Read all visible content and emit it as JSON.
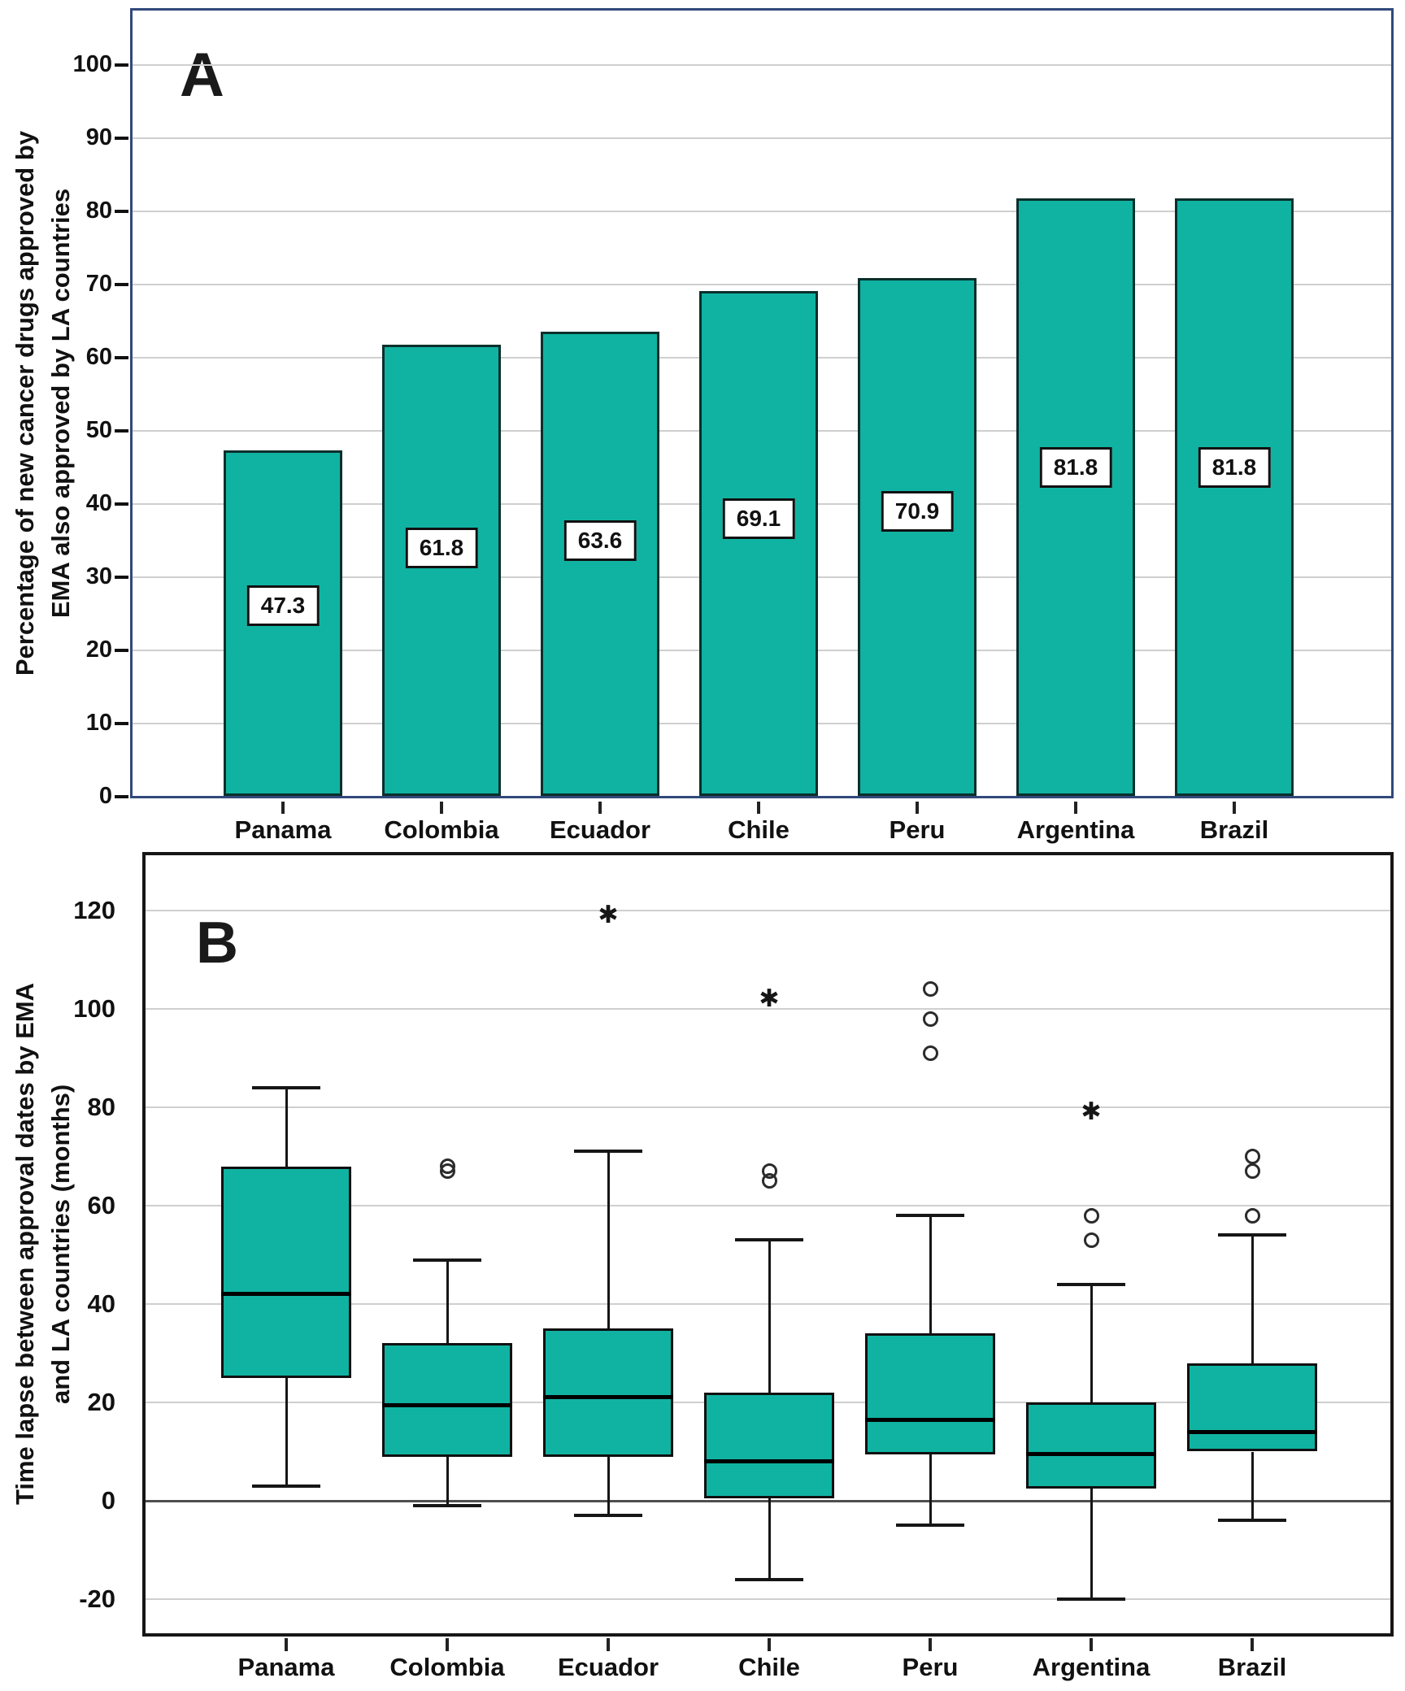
{
  "figure": {
    "panel_a_letter": "A",
    "panel_b_letter": "B"
  },
  "colors": {
    "box_fill": "#10b3a2",
    "bar_border": "#0b2f2b",
    "panel_a_border": "#31497b",
    "panel_b_border": "#161616",
    "gridline": "#cfcfcf",
    "zero_line": "#4f4f4f"
  },
  "chart_data": [
    {
      "id": "panel-a",
      "type": "bar",
      "panel_label": "A",
      "ylabel_lines": [
        "Percentage of new cancer drugs approved by",
        "EMA also approved by LA countries"
      ],
      "categories": [
        "Panama",
        "Colombia",
        "Ecuador",
        "Chile",
        "Peru",
        "Argentina",
        "Brazil"
      ],
      "values": [
        47.3,
        61.8,
        63.6,
        69.1,
        70.9,
        81.8,
        81.8
      ],
      "value_labels": [
        "47.3",
        "61.8",
        "63.6",
        "69.1",
        "70.9",
        "81.8",
        "81.8"
      ],
      "ylim": [
        0,
        100
      ],
      "yticks": [
        0,
        10,
        20,
        30,
        40,
        50,
        60,
        70,
        80,
        90,
        100
      ],
      "grid": true,
      "legend": "none"
    },
    {
      "id": "panel-b",
      "type": "boxplot",
      "panel_label": "B",
      "ylabel_lines": [
        "Time lapse between approval dates by EMA",
        "and LA countries (months)"
      ],
      "categories": [
        "Panama",
        "Colombia",
        "Ecuador",
        "Chile",
        "Peru",
        "Argentina",
        "Brazil"
      ],
      "series": [
        {
          "name": "Panama",
          "whisker_low": 3,
          "q1": 25,
          "median": 42,
          "q3": 68,
          "whisker_high": 84,
          "outliers": [],
          "extremes": []
        },
        {
          "name": "Colombia",
          "whisker_low": -1,
          "q1": 9,
          "median": 19.5,
          "q3": 32,
          "whisker_high": 49,
          "outliers": [
            67,
            68
          ],
          "extremes": []
        },
        {
          "name": "Ecuador",
          "whisker_low": -3,
          "q1": 9,
          "median": 21,
          "q3": 35,
          "whisker_high": 71,
          "outliers": [],
          "extremes": [
            119
          ]
        },
        {
          "name": "Chile",
          "whisker_low": -16,
          "q1": 0.5,
          "median": 8,
          "q3": 22,
          "whisker_high": 53,
          "outliers": [
            65,
            67
          ],
          "extremes": [
            102
          ]
        },
        {
          "name": "Peru",
          "whisker_low": -5,
          "q1": 9.5,
          "median": 16.5,
          "q3": 34,
          "whisker_high": 58,
          "outliers": [
            91,
            98,
            104
          ],
          "extremes": []
        },
        {
          "name": "Argentina",
          "whisker_low": -20,
          "q1": 2.5,
          "median": 9.5,
          "q3": 20,
          "whisker_high": 44,
          "outliers": [
            53,
            58
          ],
          "extremes": [
            79
          ]
        },
        {
          "name": "Brazil",
          "whisker_low": -4,
          "q1": 10,
          "median": 14,
          "q3": 28,
          "whisker_high": 54,
          "outliers": [
            58,
            67,
            70
          ],
          "extremes": []
        }
      ],
      "ylim": [
        -27,
        132
      ],
      "yticks": [
        -20,
        0,
        20,
        40,
        60,
        80,
        100,
        120
      ],
      "grid": true,
      "outlier_marker": "circle",
      "extreme_marker": "star",
      "star_symbol": "✱",
      "legend": "none"
    }
  ]
}
